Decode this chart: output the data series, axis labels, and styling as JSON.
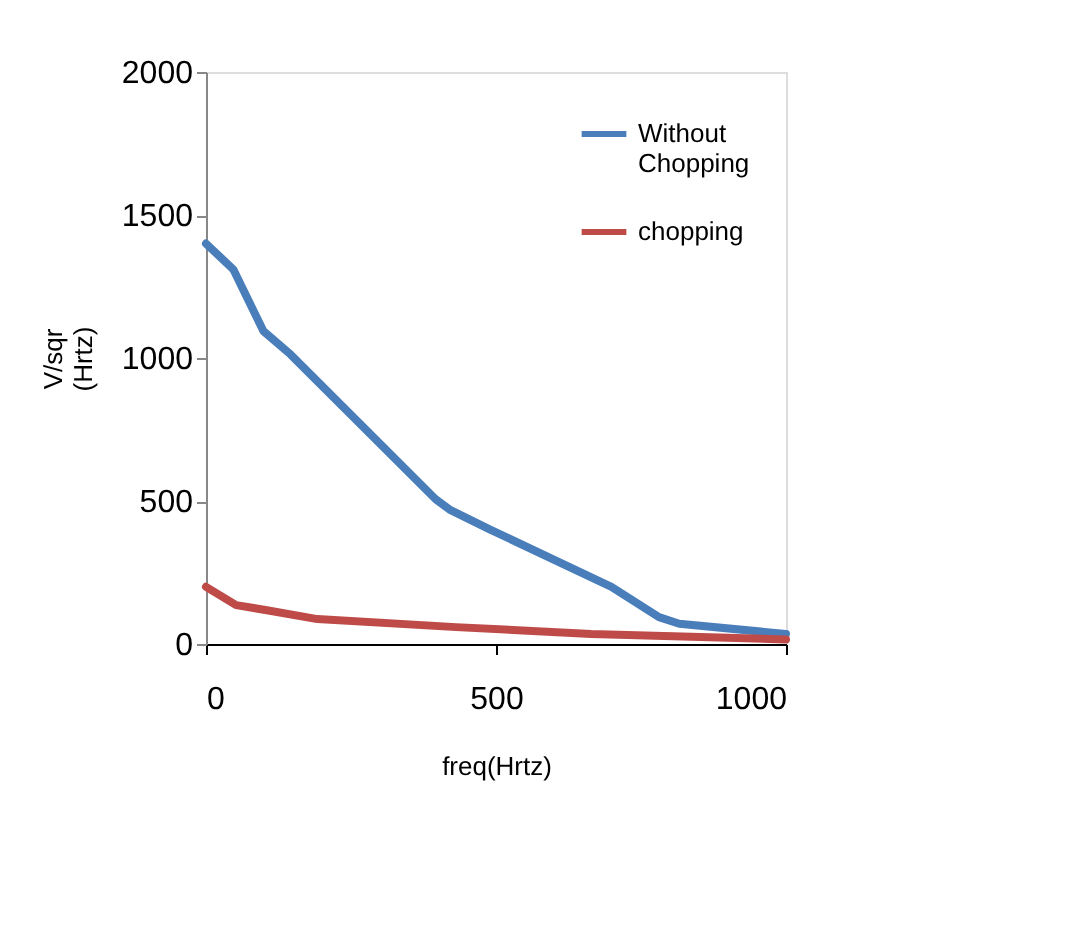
{
  "chart_data": {
    "type": "line",
    "xlabel": "freq(Hrtz)",
    "ylabel": "V/sqr\n(Hrtz)",
    "xlim": [
      0,
      1000
    ],
    "xticks": [
      0,
      500,
      1000
    ],
    "ylim": [
      0,
      2000
    ],
    "yticks": [
      0,
      500,
      1000,
      1500,
      2000
    ],
    "grid": false,
    "legend": "top right",
    "marker": "none",
    "line_style": "solid",
    "series": [
      {
        "name": "Without\nChopping",
        "color": "#4a7ebb",
        "x": [
          0,
          47,
          99,
          146,
          396,
          420,
          490,
          699,
          781,
          816,
          1000
        ],
        "values": [
          1400,
          1310,
          1094,
          1012,
          506,
          470,
          400,
          200,
          94,
          71,
          35
        ]
      },
      {
        "name": "chopping",
        "color": "#be4b48",
        "x": [
          0,
          52,
          105,
          192,
          431,
          664,
          1000
        ],
        "values": [
          200,
          136,
          118,
          87,
          59,
          35,
          16
        ]
      }
    ]
  }
}
